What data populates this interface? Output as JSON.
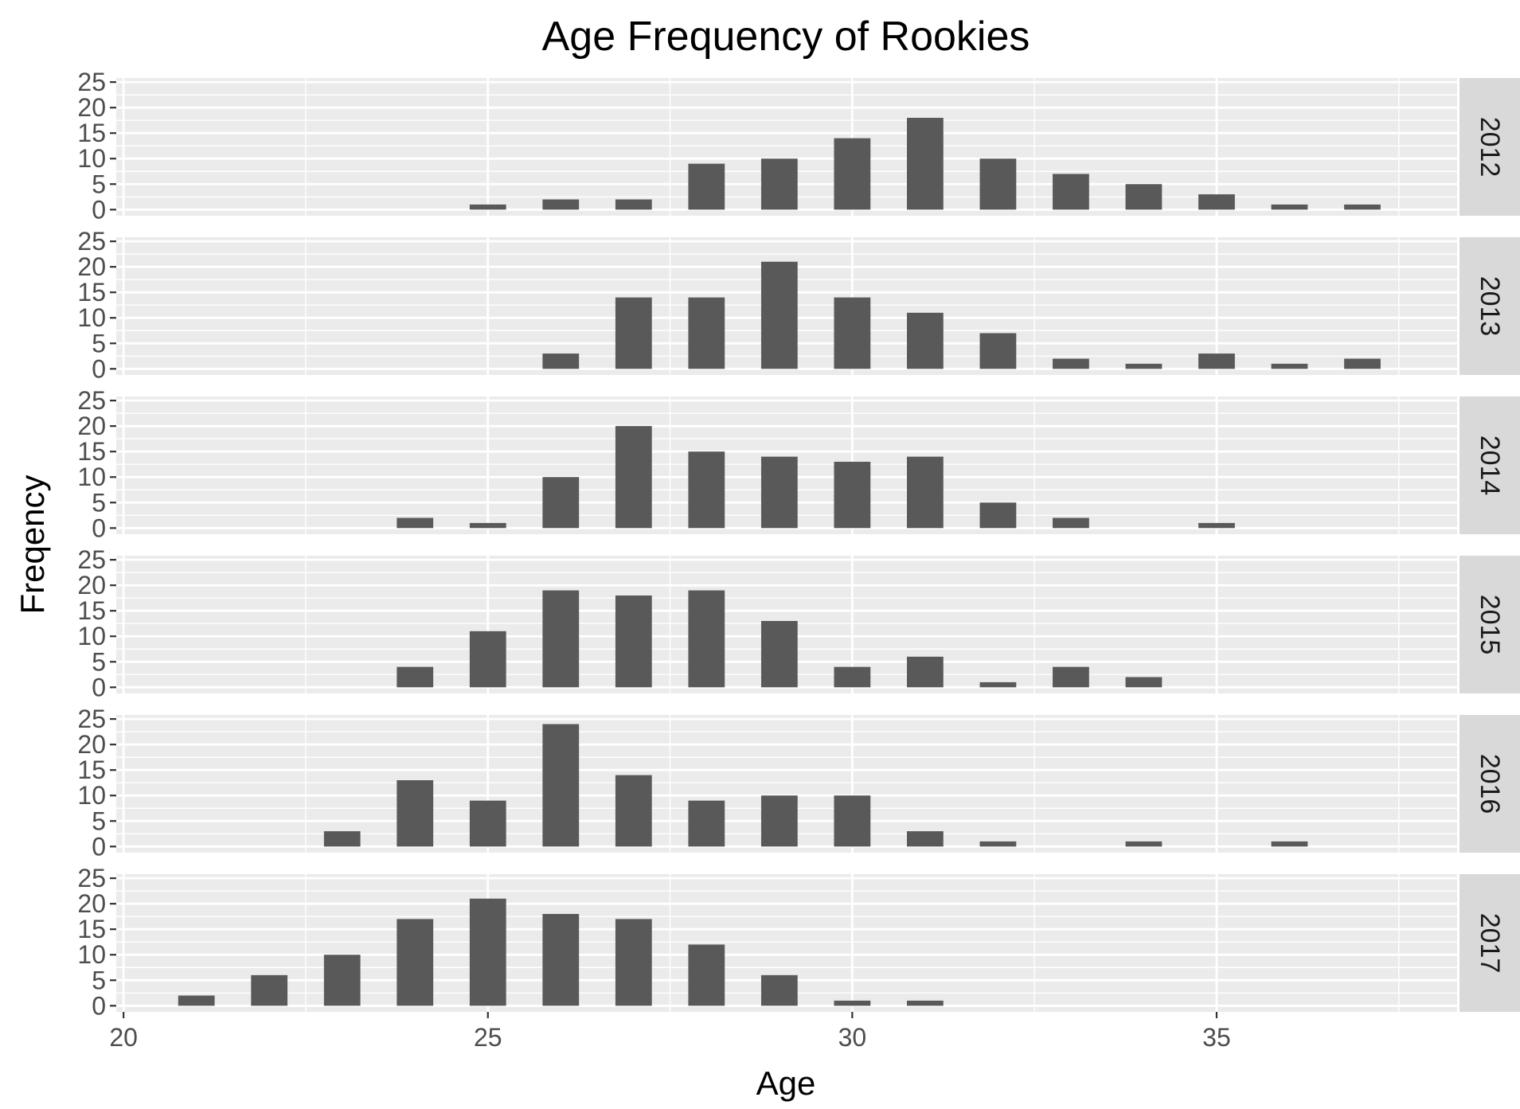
{
  "chart_data": {
    "type": "bar",
    "title": "Age Frequency of Rookies",
    "xlabel": "Age",
    "ylabel": "Freqency",
    "xlim": [
      19.9,
      38.3
    ],
    "ylim": [
      -1.2,
      25.8
    ],
    "x_ticks": [
      20,
      25,
      30,
      35
    ],
    "y_ticks": [
      0,
      5,
      10,
      15,
      20,
      25
    ],
    "grid": true,
    "legend": "none",
    "colors": {
      "bar": "#595959",
      "panel_bg": "#ebebeb",
      "strip_bg": "#d9d9d9",
      "grid": "#ffffff"
    },
    "panels": [
      {
        "label": "2012",
        "x": [
          25,
          26,
          27,
          28,
          29,
          30,
          31,
          32,
          33,
          34,
          35,
          36,
          37
        ],
        "values": [
          1,
          2,
          2,
          9,
          10,
          14,
          18,
          10,
          7,
          5,
          3,
          1,
          1
        ]
      },
      {
        "label": "2013",
        "x": [
          26,
          27,
          28,
          29,
          30,
          31,
          32,
          33,
          34,
          35,
          36,
          37
        ],
        "values": [
          3,
          14,
          14,
          21,
          14,
          11,
          7,
          2,
          1,
          3,
          1,
          2
        ]
      },
      {
        "label": "2014",
        "x": [
          24,
          25,
          26,
          27,
          28,
          29,
          30,
          31,
          32,
          33,
          35
        ],
        "values": [
          2,
          1,
          10,
          20,
          15,
          14,
          13,
          14,
          5,
          2,
          1
        ]
      },
      {
        "label": "2015",
        "x": [
          24,
          25,
          26,
          27,
          28,
          29,
          30,
          31,
          32,
          33,
          34
        ],
        "values": [
          4,
          11,
          19,
          18,
          19,
          13,
          4,
          6,
          1,
          4,
          2
        ]
      },
      {
        "label": "2016",
        "x": [
          23,
          24,
          25,
          26,
          27,
          28,
          29,
          30,
          31,
          32,
          34,
          36
        ],
        "values": [
          3,
          13,
          9,
          24,
          14,
          9,
          10,
          10,
          3,
          1,
          1,
          1
        ]
      },
      {
        "label": "2017",
        "x": [
          21,
          22,
          23,
          24,
          25,
          26,
          27,
          28,
          29,
          30,
          31
        ],
        "values": [
          2,
          6,
          10,
          17,
          21,
          18,
          17,
          12,
          6,
          1,
          1
        ]
      }
    ]
  }
}
